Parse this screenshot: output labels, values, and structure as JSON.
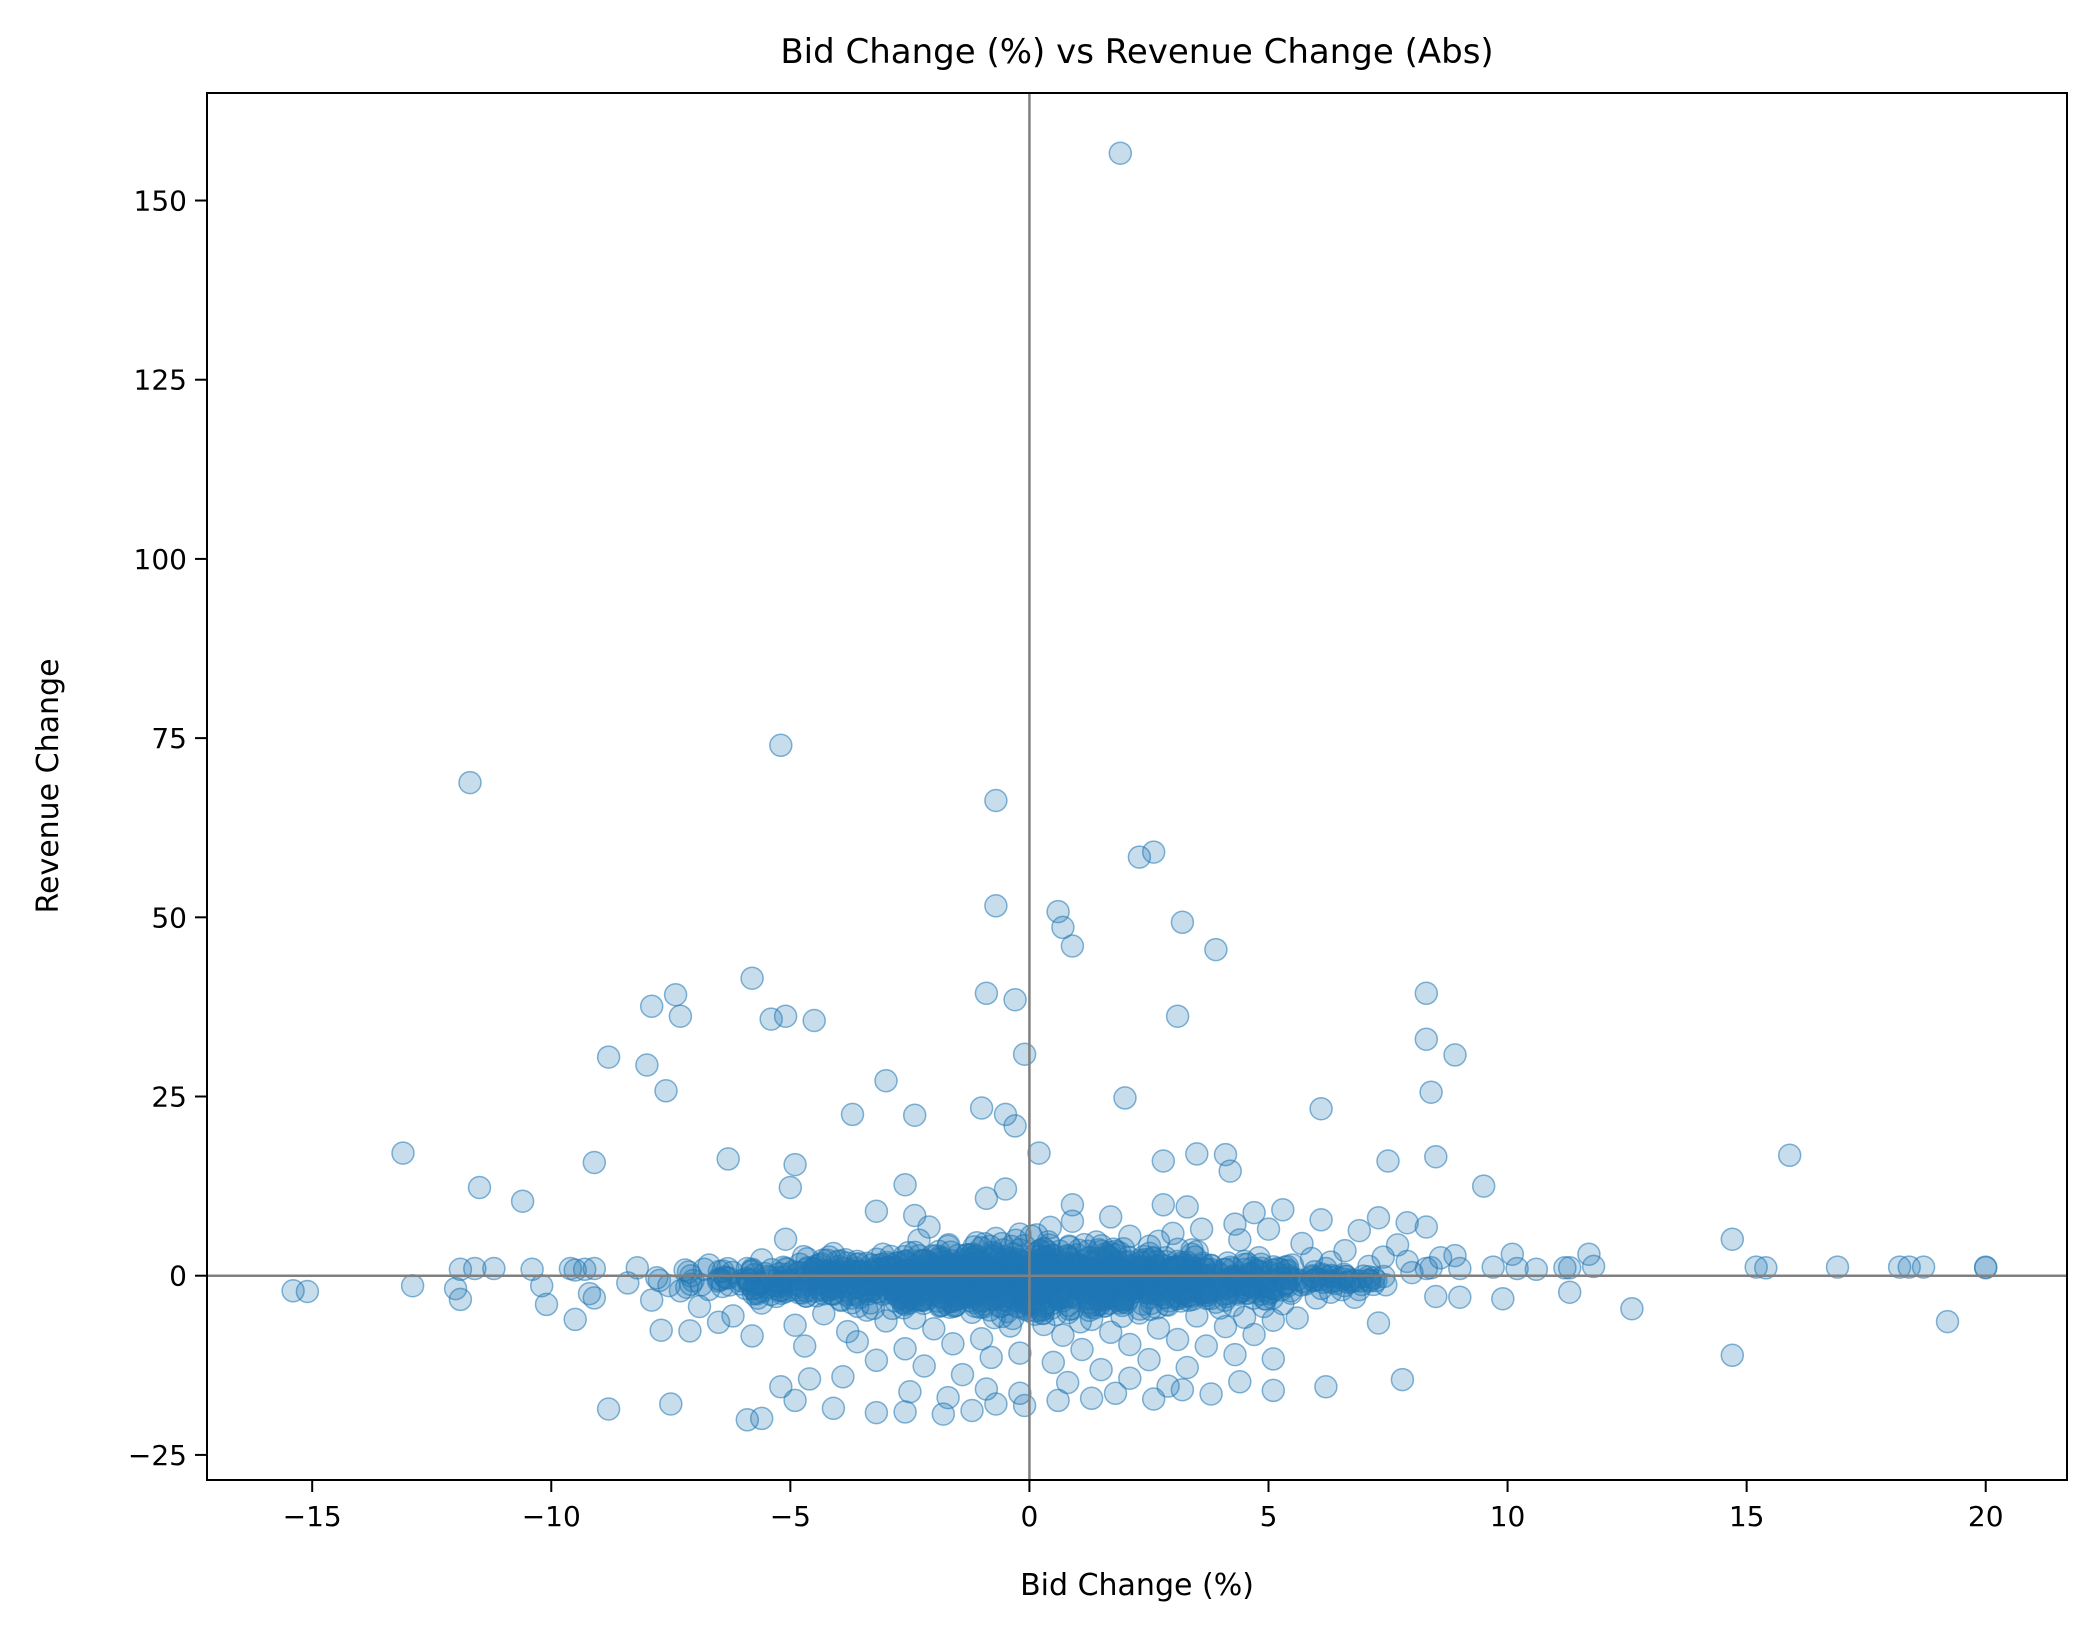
{
  "chart_data": {
    "type": "scatter",
    "title": "Bid Change (%) vs Revenue Change (Abs)",
    "xlabel": "Bid Change (%)",
    "ylabel": "Revenue Change",
    "xlim": [
      -17.2,
      21.7
    ],
    "ylim": [
      -28.5,
      165
    ],
    "xticks": [
      -15,
      -10,
      -5,
      0,
      5,
      10,
      15,
      20
    ],
    "xtick_labels": [
      "−15",
      "−10",
      "−5",
      "0",
      "5",
      "10",
      "15",
      "20"
    ],
    "yticks": [
      -25,
      0,
      25,
      50,
      75,
      100,
      125,
      150
    ],
    "ytick_labels": [
      "−25",
      "0",
      "25",
      "50",
      "75",
      "100",
      "125",
      "150"
    ],
    "reference_lines": {
      "x": 0,
      "y": 0
    },
    "grid": false,
    "legend": false,
    "colors": {
      "point": "#1f77b4",
      "reference_line": "#808080"
    },
    "series": [
      {
        "points": [
          [
            1.9,
            156.6
          ],
          [
            -5.2,
            74
          ],
          [
            -11.7,
            68.8
          ],
          [
            -0.7,
            66.3
          ],
          [
            2.6,
            59.1
          ],
          [
            2.3,
            58.4
          ],
          [
            0.6,
            50.8
          ],
          [
            3.2,
            49.3
          ],
          [
            0.7,
            48.6
          ],
          [
            0.9,
            46
          ],
          [
            -0.7,
            51.6
          ],
          [
            3.9,
            45.5
          ],
          [
            -5.8,
            41.5
          ],
          [
            -7.4,
            39.2
          ],
          [
            -0.9,
            39.4
          ],
          [
            -0.3,
            38.5
          ],
          [
            -7.9,
            37.6
          ],
          [
            -7.3,
            36.2
          ],
          [
            -5.4,
            35.8
          ],
          [
            -5.1,
            36.2
          ],
          [
            -4.5,
            35.6
          ],
          [
            3.1,
            36.2
          ],
          [
            8.3,
            39.4
          ],
          [
            8.3,
            33
          ],
          [
            8.9,
            30.8
          ],
          [
            -0.1,
            30.9
          ],
          [
            -8.8,
            30.5
          ],
          [
            -8,
            29.4
          ],
          [
            -3,
            27.2
          ],
          [
            -7.6,
            25.8
          ],
          [
            8.4,
            25.6
          ],
          [
            2,
            24.8
          ],
          [
            -1,
            23.4
          ],
          [
            6.1,
            23.3
          ],
          [
            -3.7,
            22.5
          ],
          [
            -2.4,
            22.4
          ],
          [
            -0.5,
            22.5
          ],
          [
            -0.3,
            20.9
          ],
          [
            -13.1,
            17.1
          ],
          [
            0.2,
            17.1
          ],
          [
            3.5,
            17
          ],
          [
            4.1,
            16.9
          ],
          [
            15.9,
            16.8
          ],
          [
            8.5,
            16.6
          ],
          [
            -6.3,
            16.3
          ],
          [
            7.5,
            16
          ],
          [
            2.8,
            16
          ],
          [
            -9.1,
            15.8
          ],
          [
            -4.9,
            15.5
          ],
          [
            4.2,
            14.6
          ],
          [
            -11.5,
            12.3
          ],
          [
            -5,
            12.3
          ],
          [
            -2.6,
            12.7
          ],
          [
            -0.5,
            12.1
          ],
          [
            9.5,
            12.5
          ],
          [
            -10.6,
            10.4
          ],
          [
            -0.9,
            10.8
          ],
          [
            0.9,
            9.9
          ],
          [
            2.8,
            9.9
          ],
          [
            3.3,
            9.6
          ],
          [
            -3.2,
            9
          ],
          [
            4.7,
            8.8
          ],
          [
            5.3,
            9.2
          ],
          [
            -2.4,
            8.4
          ],
          [
            1.7,
            8.2
          ],
          [
            6.1,
            7.8
          ],
          [
            7.3,
            8.1
          ],
          [
            0.9,
            7.6
          ],
          [
            4.3,
            7.2
          ],
          [
            7.9,
            7.4
          ],
          [
            8.3,
            6.8
          ],
          [
            -2.1,
            6.8
          ],
          [
            3.6,
            6.5
          ],
          [
            5,
            6.5
          ],
          [
            6.9,
            6.3
          ],
          [
            -0.2,
            5.8
          ],
          [
            -1.1,
            4.6
          ],
          [
            3,
            5.9
          ],
          [
            2.1,
            5.5
          ],
          [
            4.4,
            5
          ],
          [
            14.7,
            5.1
          ],
          [
            -5.1,
            5.1
          ],
          [
            -0.7,
            5.2
          ],
          [
            1.4,
            4.7
          ],
          [
            2.7,
            4.8
          ],
          [
            5.7,
            4.5
          ],
          [
            7.7,
            4.3
          ],
          [
            -1.7,
            4.1
          ],
          [
            0.3,
            3.8
          ],
          [
            1.8,
            3.4
          ],
          [
            3.4,
            3.6
          ],
          [
            6.6,
            3.5
          ],
          [
            8.9,
            2.8
          ],
          [
            10.1,
            3
          ],
          [
            11.7,
            3
          ],
          [
            -4.1,
            3.1
          ],
          [
            -2.9,
            2.7
          ],
          [
            -1.3,
            2.9
          ],
          [
            0.8,
            2.8
          ],
          [
            2.4,
            2.7
          ],
          [
            4.8,
            2.5
          ],
          [
            5.9,
            2.4
          ],
          [
            7.4,
            2.6
          ],
          [
            8.6,
            2.5
          ],
          [
            -5.6,
            2.2
          ],
          [
            -3.6,
            2
          ],
          [
            -2.2,
            2.1
          ],
          [
            -0.4,
            1.8
          ],
          [
            1.3,
            1.9
          ],
          [
            3.1,
            2
          ],
          [
            4.5,
            2
          ],
          [
            6.3,
            1.9
          ],
          [
            7.9,
            2
          ],
          [
            -6.7,
            1.5
          ],
          [
            -4.8,
            1.6
          ],
          [
            -3.3,
            1.5
          ],
          [
            -1.6,
            1.4
          ],
          [
            0.6,
            1.4
          ],
          [
            2.2,
            1.5
          ],
          [
            3.8,
            1.4
          ],
          [
            5.5,
            1.5
          ],
          [
            7.1,
            1.3
          ],
          [
            -11.9,
            0.9
          ],
          [
            -11.6,
            1
          ],
          [
            -11.2,
            1
          ],
          [
            -10.4,
            0.9
          ],
          [
            -9.6,
            1
          ],
          [
            -9.5,
            0.8
          ],
          [
            -9.3,
            0.9
          ],
          [
            -9.1,
            1
          ],
          [
            -8.2,
            1.1
          ],
          [
            -7.2,
            0.8
          ],
          [
            -6.8,
            0.9
          ],
          [
            -5.9,
            1
          ],
          [
            -5.8,
            0.9
          ],
          [
            -5.1,
            1
          ],
          [
            -4.5,
            0.9
          ],
          [
            -3.9,
            1
          ],
          [
            -2.8,
            0.9
          ],
          [
            -1.9,
            0.9
          ],
          [
            -0.9,
            1
          ],
          [
            0.4,
            0.9
          ],
          [
            1.7,
            0.9
          ],
          [
            2.9,
            1
          ],
          [
            4.1,
            0.9
          ],
          [
            5.2,
            1
          ],
          [
            6.2,
            1
          ],
          [
            8.3,
            1
          ],
          [
            8.4,
            1.1
          ],
          [
            9,
            1
          ],
          [
            9.7,
            1.2
          ],
          [
            10.2,
            1
          ],
          [
            10.6,
            0.9
          ],
          [
            11.2,
            1.1
          ],
          [
            11.3,
            1.1
          ],
          [
            11.8,
            1.3
          ],
          [
            15.2,
            1.2
          ],
          [
            15.4,
            1.1
          ],
          [
            16.9,
            1.2
          ],
          [
            18.2,
            1.2
          ],
          [
            18.4,
            1.2
          ],
          [
            18.7,
            1.2
          ],
          [
            20,
            1.2
          ],
          [
            20,
            1.1
          ],
          [
            -12,
            -1.8
          ],
          [
            -11.9,
            -3.3
          ],
          [
            -15.4,
            -2.1
          ],
          [
            -15.1,
            -2.2
          ],
          [
            -12.9,
            -1.4
          ],
          [
            -10.2,
            -1.4
          ],
          [
            -10.1,
            -4
          ],
          [
            -9.5,
            -6.1
          ],
          [
            -9.2,
            -2.5
          ],
          [
            -9.1,
            -3.1
          ],
          [
            -8.4,
            -1
          ],
          [
            -7.9,
            -3.4
          ],
          [
            -7.7,
            -7.6
          ],
          [
            -7.3,
            -2.1
          ],
          [
            -7.1,
            -7.7
          ],
          [
            -6.9,
            -4.3
          ],
          [
            -6.5,
            -6.5
          ],
          [
            -6.2,
            -5.6
          ],
          [
            -5.8,
            -8.4
          ],
          [
            -5.6,
            -3.8
          ],
          [
            -5.3,
            -2.9
          ],
          [
            -4.9,
            -6.9
          ],
          [
            -4.7,
            -9.8
          ],
          [
            -4.3,
            -5.3
          ],
          [
            -4.1,
            -2.6
          ],
          [
            -3.8,
            -7.8
          ],
          [
            -3.6,
            -9.2
          ],
          [
            -3.4,
            -4.8
          ],
          [
            -3.2,
            -11.8
          ],
          [
            -3,
            -6.3
          ],
          [
            -2.8,
            -3.5
          ],
          [
            -2.6,
            -10.2
          ],
          [
            -2.4,
            -5.9
          ],
          [
            -2.2,
            -12.6
          ],
          [
            -2,
            -7.4
          ],
          [
            -1.8,
            -3.1
          ],
          [
            -1.6,
            -9.5
          ],
          [
            -1.4,
            -13.8
          ],
          [
            -1.2,
            -5.1
          ],
          [
            -1,
            -8.8
          ],
          [
            -0.8,
            -11.4
          ],
          [
            -0.6,
            -4.2
          ],
          [
            -0.4,
            -7
          ],
          [
            -0.2,
            -10.8
          ],
          [
            0.1,
            -3.9
          ],
          [
            0.3,
            -6.8
          ],
          [
            0.5,
            -12.1
          ],
          [
            0.7,
            -8.3
          ],
          [
            0.9,
            -4.6
          ],
          [
            1.1,
            -10.3
          ],
          [
            1.3,
            -6.1
          ],
          [
            1.5,
            -13.1
          ],
          [
            1.7,
            -7.9
          ],
          [
            1.9,
            -3.8
          ],
          [
            2.1,
            -9.6
          ],
          [
            2.3,
            -5.2
          ],
          [
            2.5,
            -11.7
          ],
          [
            2.7,
            -7.3
          ],
          [
            2.9,
            -4.1
          ],
          [
            3.1,
            -8.9
          ],
          [
            3.3,
            -12.8
          ],
          [
            3.5,
            -5.6
          ],
          [
            3.7,
            -9.8
          ],
          [
            3.9,
            -3.7
          ],
          [
            4.1,
            -7.1
          ],
          [
            4.3,
            -11
          ],
          [
            4.5,
            -5.8
          ],
          [
            4.7,
            -8.2
          ],
          [
            4.9,
            -4.3
          ],
          [
            5.1,
            -6.2
          ],
          [
            5.3,
            -3.9
          ],
          [
            5.6,
            -5.9
          ],
          [
            6,
            -3.1
          ],
          [
            6.3,
            -2.3
          ],
          [
            6.8,
            -3
          ],
          [
            7.3,
            -6.6
          ],
          [
            7.8,
            -14.5
          ],
          [
            8.5,
            -2.9
          ],
          [
            9,
            -3
          ],
          [
            9.9,
            -3.2
          ],
          [
            11.3,
            -2.3
          ],
          [
            12.6,
            -4.6
          ],
          [
            14.7,
            -11.1
          ],
          [
            19.2,
            -6.4
          ],
          [
            6.2,
            -15.5
          ],
          [
            5.1,
            -16
          ],
          [
            5.1,
            -11.6
          ],
          [
            3.8,
            -16.5
          ],
          [
            3.2,
            -15.9
          ],
          [
            2.6,
            -17.2
          ],
          [
            1.8,
            -16.4
          ],
          [
            1.3,
            -17.1
          ],
          [
            0.6,
            -17.4
          ],
          [
            -0.1,
            -18.1
          ],
          [
            -0.7,
            -17.9
          ],
          [
            -1.2,
            -18.8
          ],
          [
            -1.8,
            -19.3
          ],
          [
            -2.6,
            -19
          ],
          [
            -3.2,
            -19.1
          ],
          [
            -4.1,
            -18.5
          ],
          [
            -4.9,
            -17.4
          ],
          [
            -5.6,
            -19.9
          ],
          [
            -5.9,
            -20.1
          ],
          [
            -7.5,
            -17.9
          ],
          [
            -8.8,
            -18.6
          ],
          [
            -5.2,
            -15.5
          ],
          [
            -4.6,
            -14.4
          ],
          [
            -3.9,
            -14.1
          ],
          [
            -2.5,
            -16.2
          ],
          [
            -1.7,
            -17
          ],
          [
            -0.9,
            -15.8
          ],
          [
            -0.2,
            -16.4
          ],
          [
            0.8,
            -14.9
          ],
          [
            2.1,
            -14.3
          ],
          [
            2.9,
            -15.4
          ],
          [
            4.4,
            -14.8
          ]
        ]
      },
      {
        "cluster": {
          "x_range": [
            -7,
            7
          ],
          "y_range": [
            -8,
            5
          ],
          "count": 1400
        }
      }
    ]
  }
}
